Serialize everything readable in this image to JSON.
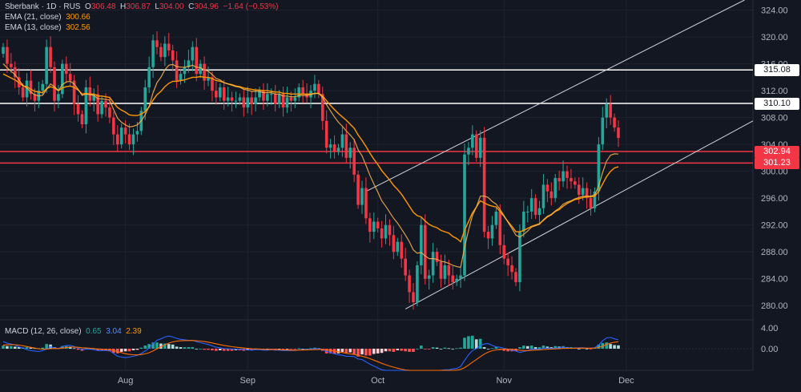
{
  "legend": {
    "symbol": "Sberbank · 1D · RUS",
    "o_label": "O",
    "o": "306.48",
    "h_label": "H",
    "h": "306.87",
    "l_label": "L",
    "l": "304.00",
    "c_label": "C",
    "c": "304.96",
    "change": "−1.64 (−0.53%)",
    "ema21_label": "EMA (21, close)",
    "ema21_value": "300.66",
    "ema13_label": "EMA (13, close)",
    "ema13_value": "302.56",
    "macd_label": "MACD (12, 26, close)",
    "macd_hist": "0.65",
    "macd_line": "3.04",
    "macd_signal": "2.39"
  },
  "colors": {
    "up": "#26a69a",
    "down": "#f23645",
    "ema21": "#ff9800",
    "ema13": "#ffb74d",
    "macd": "#2962ff",
    "signal": "#ff6d00",
    "background": "#131722"
  },
  "chart_data": {
    "type": "candlestick",
    "x_ticks": [
      "Aug",
      "Sep",
      "Oct",
      "Nov",
      "Dec"
    ],
    "y_ticks": [
      "324.00",
      "320.00",
      "316.00",
      "312.00",
      "308.00",
      "304.00",
      "300.00",
      "296.00",
      "292.00",
      "288.00",
      "284.00",
      "280.00"
    ],
    "ylim": [
      278,
      325.5
    ],
    "horizontal_levels": [
      {
        "value": 315.08,
        "label": "315.08",
        "color": "#ffffff"
      },
      {
        "value": 310.1,
        "label": "310.10",
        "color": "#ffffff"
      },
      {
        "value": 302.94,
        "label": "302.94",
        "color": "#f23645"
      },
      {
        "value": 301.23,
        "label": "301.23",
        "color": "#f23645"
      }
    ],
    "closes": [
      318.5,
      316.0,
      315.5,
      314.0,
      312.5,
      311.0,
      313.5,
      311.5,
      310.5,
      312.0,
      313.0,
      318.5,
      315.5,
      310.5,
      311.5,
      316.0,
      314.5,
      313.5,
      310.0,
      308.5,
      307.0,
      312.5,
      310.5,
      311.5,
      308.5,
      310.5,
      309.5,
      308.0,
      305.5,
      304.0,
      306.5,
      305.5,
      304.0,
      305.5,
      306.0,
      309.0,
      312.5,
      315.5,
      319.5,
      318.5,
      317.0,
      319.0,
      318.0,
      316.5,
      313.5,
      314.5,
      315.5,
      316.5,
      318.5,
      314.5,
      316.0,
      313.5,
      314.0,
      312.0,
      311.0,
      312.5,
      310.5,
      311.0,
      310.5,
      310.5,
      311.0,
      309.5,
      311.0,
      310.0,
      311.0,
      312.0,
      310.5,
      311.5,
      311.5,
      310.0,
      311.5,
      309.5,
      311.0,
      310.5,
      311.0,
      312.5,
      311.5,
      311.0,
      312.0,
      313.0,
      311.5,
      307.5,
      303.5,
      304.0,
      303.0,
      303.5,
      305.5,
      302.0,
      303.5,
      299.5,
      295.0,
      297.5,
      293.0,
      291.0,
      292.5,
      291.5,
      290.0,
      292.0,
      290.5,
      288.0,
      289.5,
      287.0,
      284.5,
      282.0,
      280.5,
      286.0,
      292.0,
      284.0,
      284.5,
      288.0,
      286.5,
      284.0,
      286.0,
      284.5,
      283.5,
      284.0,
      284.5,
      302.5,
      303.5,
      305.5,
      302.0,
      305.0,
      291.0,
      290.0,
      292.0,
      294.0,
      289.0,
      287.0,
      286.0,
      285.0,
      283.5,
      291.0,
      294.0,
      294.0,
      296.0,
      293.5,
      294.5,
      298.0,
      297.0,
      296.0,
      299.0,
      298.5,
      300.0,
      299.0,
      298.5,
      298.0,
      296.5,
      297.5,
      296.0,
      294.5,
      297.0,
      304.0,
      308.0,
      310.0,
      308.0,
      306.5,
      304.96
    ],
    "ema13": [
      316.0,
      315.4,
      314.9,
      314.4,
      313.6,
      312.8,
      312.4,
      311.8,
      311.4,
      311.2,
      311.3,
      312.2,
      313.0,
      312.6,
      312.0,
      312.9,
      313.3,
      313.4,
      313.0,
      312.2,
      311.3,
      311.5,
      311.4,
      311.3,
      310.8,
      310.8,
      310.7,
      310.6,
      309.2,
      307.9,
      307.3,
      306.9,
      306.6,
      306.7,
      306.9,
      307.5,
      308.4,
      309.7,
      311.7,
      313.2,
      314.0,
      315.1,
      315.8,
      315.9,
      315.6,
      315.5,
      315.5,
      315.6,
      315.8,
      315.5,
      315.4,
      315.1,
      314.9,
      314.4,
      313.8,
      313.6,
      313.2,
      313.0,
      312.8,
      312.6,
      312.5,
      312.2,
      312.1,
      311.9,
      311.9,
      311.9,
      311.7,
      311.7,
      311.7,
      311.5,
      311.5,
      311.2,
      311.2,
      311.1,
      311.1,
      311.3,
      311.3,
      311.3,
      311.4,
      311.6,
      311.6,
      311.0,
      309.9,
      309.0,
      308.1,
      307.3,
      306.7,
      306.0,
      305.4,
      304.7,
      303.2,
      302.3,
      300.9,
      299.4,
      298.1,
      296.9,
      295.6,
      294.8,
      293.9,
      293.0,
      292.3,
      291.4,
      290.5,
      289.5,
      288.3,
      287.8,
      287.9,
      287.4,
      287.0,
      287.0,
      286.9,
      286.6,
      286.5,
      286.3,
      286.0,
      285.8,
      285.7,
      288.7,
      291.2,
      293.4,
      294.7,
      296.3,
      296.3,
      296.1,
      295.5,
      295.1,
      294.3,
      293.4,
      292.4,
      291.5,
      290.5,
      290.2,
      290.6,
      291.1,
      291.7,
      291.9,
      292.1,
      292.8,
      293.3,
      293.6,
      294.1,
      294.5,
      295.1,
      295.4,
      295.6,
      295.9,
      296.1,
      296.3,
      296.3,
      296.3,
      296.5,
      297.8,
      299.8,
      301.5,
      302.4,
      302.6,
      302.56
    ],
    "ema21": [
      314.5,
      314.2,
      313.9,
      313.6,
      313.2,
      312.7,
      312.6,
      312.2,
      311.9,
      311.8,
      311.7,
      312.3,
      312.6,
      312.4,
      312.0,
      312.4,
      312.6,
      312.7,
      312.5,
      312.1,
      311.5,
      311.6,
      311.5,
      311.5,
      311.2,
      311.2,
      311.1,
      311.0,
      310.2,
      309.5,
      309.1,
      308.8,
      308.4,
      308.3,
      308.3,
      308.5,
      308.9,
      309.6,
      310.6,
      311.4,
      311.9,
      312.6,
      313.1,
      313.4,
      313.4,
      313.5,
      313.6,
      313.8,
      314.0,
      314.0,
      314.1,
      314.0,
      314.0,
      313.8,
      313.5,
      313.4,
      313.2,
      313.0,
      312.9,
      312.7,
      312.6,
      312.4,
      312.3,
      312.2,
      312.1,
      312.1,
      312.0,
      312.0,
      311.9,
      311.8,
      311.8,
      311.6,
      311.6,
      311.5,
      311.5,
      311.5,
      311.5,
      311.5,
      311.5,
      311.6,
      311.6,
      311.2,
      310.5,
      309.8,
      309.2,
      308.6,
      308.1,
      307.6,
      307.0,
      306.4,
      305.4,
      304.6,
      303.7,
      302.7,
      301.8,
      301.0,
      300.1,
      299.4,
      298.7,
      297.9,
      297.3,
      296.6,
      295.7,
      294.8,
      293.9,
      293.4,
      293.2,
      292.6,
      292.1,
      291.8,
      291.6,
      291.2,
      291.0,
      290.8,
      290.3,
      290.0,
      289.5,
      291.2,
      292.5,
      293.8,
      294.7,
      295.6,
      295.3,
      295.0,
      294.8,
      294.7,
      294.0,
      293.3,
      292.5,
      291.8,
      291.0,
      291.0,
      291.2,
      291.5,
      291.8,
      292.0,
      292.2,
      292.7,
      293.2,
      293.5,
      294.0,
      294.3,
      294.8,
      295.2,
      295.5,
      295.8,
      295.9,
      296.1,
      296.2,
      296.2,
      296.3,
      297.0,
      298.1,
      299.2,
      300.0,
      300.5,
      300.66
    ],
    "macd_hist": [
      0.6,
      0.5,
      0.5,
      0.4,
      0.3,
      0.2,
      0.3,
      0.2,
      0.1,
      0.1,
      0.2,
      0.9,
      0.8,
      0.3,
      0.1,
      0.5,
      0.5,
      0.4,
      0.1,
      -0.2,
      -0.4,
      0.1,
      0.0,
      0.0,
      -0.3,
      -0.3,
      -0.4,
      -0.5,
      -0.8,
      -0.9,
      -0.6,
      -0.5,
      -0.5,
      -0.3,
      -0.2,
      0.2,
      0.6,
      0.9,
      1.2,
      1.2,
      1.0,
      1.0,
      0.9,
      0.8,
      0.4,
      0.3,
      0.3,
      0.3,
      0.3,
      0.0,
      0.0,
      -0.2,
      -0.2,
      -0.3,
      -0.4,
      -0.3,
      -0.4,
      -0.4,
      -0.4,
      -0.3,
      -0.3,
      -0.4,
      -0.3,
      -0.3,
      -0.2,
      -0.1,
      -0.2,
      -0.1,
      -0.1,
      -0.2,
      -0.1,
      -0.2,
      -0.1,
      -0.1,
      -0.1,
      0.1,
      0.0,
      0.0,
      0.1,
      0.2,
      0.1,
      -0.4,
      -0.9,
      -0.9,
      -1.0,
      -0.9,
      -0.6,
      -0.9,
      -0.7,
      -1.1,
      -1.5,
      -1.1,
      -1.3,
      -1.3,
      -1.0,
      -0.9,
      -0.8,
      -0.5,
      -0.5,
      -0.6,
      -0.3,
      -0.4,
      -0.5,
      -0.6,
      -0.6,
      0.0,
      0.6,
      -0.1,
      -0.1,
      0.3,
      0.2,
      0.0,
      0.2,
      0.1,
      0.0,
      0.1,
      0.2,
      2.1,
      2.4,
      2.5,
      1.8,
      1.9,
      0.3,
      0.0,
      0.1,
      0.3,
      -0.2,
      -0.4,
      -0.5,
      -0.5,
      -0.5,
      0.3,
      0.6,
      0.5,
      0.6,
      0.3,
      0.3,
      0.6,
      0.4,
      0.3,
      0.5,
      0.4,
      0.5,
      0.3,
      0.3,
      0.2,
      0.0,
      0.1,
      0.0,
      -0.1,
      0.2,
      0.8,
      1.1,
      1.2,
      0.9,
      0.7,
      0.65
    ]
  }
}
